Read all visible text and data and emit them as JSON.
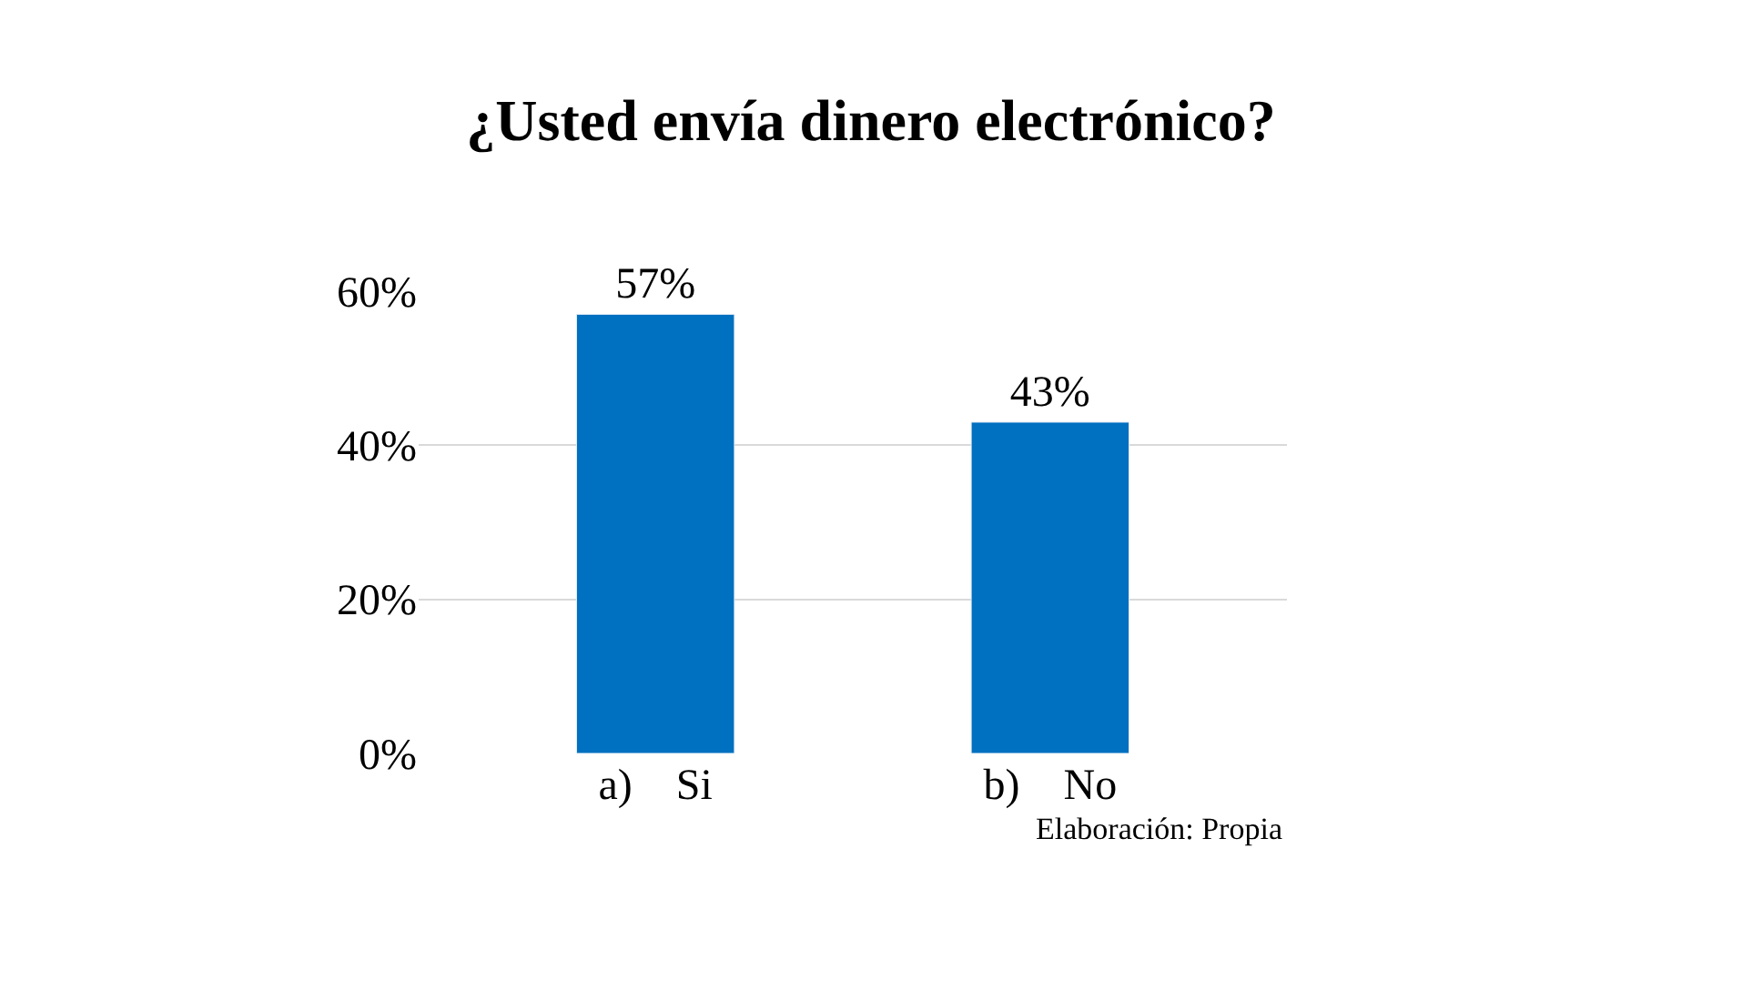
{
  "chart_data": {
    "type": "bar",
    "title": "¿Usted envía dinero electrónico?",
    "categories": [
      "a)    Si",
      "b)    No"
    ],
    "values": [
      57,
      43
    ],
    "value_labels": [
      "57%",
      "43%"
    ],
    "color": "#0070c0",
    "ylim": [
      0,
      60
    ],
    "yticks": [
      {
        "value": 0,
        "label": "0%"
      },
      {
        "value": 20,
        "label": "20%"
      },
      {
        "value": 40,
        "label": "40%"
      },
      {
        "value": 60,
        "label": "60%"
      }
    ],
    "grid": "y",
    "annotations": [
      "Elaboración: Propia"
    ]
  }
}
